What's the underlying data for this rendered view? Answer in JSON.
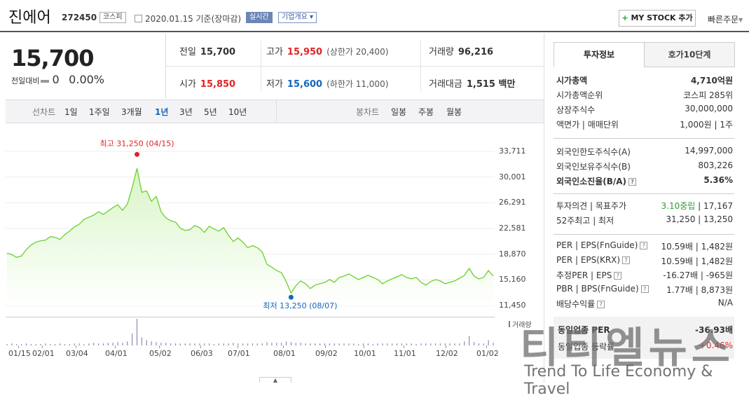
{
  "header": {
    "company_name": "진에어",
    "stock_code": "272450",
    "market_tag": "코스피",
    "date_text": "2020.01.15 기준(장마감)",
    "realtime_tag": "실시간",
    "company_overview_tag": "기업개요",
    "mystock_plus": "+",
    "mystock_label": "MY STOCK 추가",
    "quick_order": "빠른주문"
  },
  "price": {
    "current": "15,700",
    "diff_label": "전일대비",
    "diff_value": "0",
    "diff_pct": "0.00%"
  },
  "summary": {
    "prev_label": "전일",
    "prev_value": "15,700",
    "high_label": "고가",
    "high_value": "15,950",
    "upper_limit": "(상한가 20,400)",
    "volume_label": "거래량",
    "volume_value": "96,216",
    "open_label": "시가",
    "open_value": "15,850",
    "low_label": "저가",
    "low_value": "15,600",
    "lower_limit": "(하한가 11,000)",
    "amount_label": "거래대금",
    "amount_value": "1,515 백만"
  },
  "periods": {
    "line_label": "선차트",
    "line_items": [
      "1일",
      "1주일",
      "3개월",
      "1년",
      "3년",
      "5년",
      "10년"
    ],
    "active_index": 3,
    "candle_label": "봉차트",
    "candle_items": [
      "일봉",
      "주봉",
      "월봉"
    ]
  },
  "chart_data": {
    "type": "area",
    "y_ticks": [
      "33,711",
      "30,001",
      "26,291",
      "22,581",
      "18,870",
      "15,160",
      "11,450"
    ],
    "ylim": [
      11450,
      33711
    ],
    "x_ticks": [
      "01/15",
      "02/01",
      "03/04",
      "04/01",
      "05/02",
      "06/03",
      "07/01",
      "08/01",
      "09/02",
      "10/01",
      "11/01",
      "12/02",
      "01/02"
    ],
    "high_annotation": "최고 31,250 (04/15)",
    "low_annotation": "최저 13,250 (08/07)",
    "high_value": 31250,
    "low_value": 13250,
    "volume_label": "거래량",
    "series": [
      {
        "values": [
          19000,
          18800,
          18400,
          18600,
          19500,
          20200,
          20600,
          20800,
          20900,
          21400,
          21300,
          21000,
          21700,
          22200,
          22800,
          23200,
          23900,
          24200,
          24500,
          25000,
          24600,
          25100,
          25600,
          26000,
          25200,
          26100,
          28500,
          31250,
          27800,
          28000,
          26500,
          27200,
          25000,
          24100,
          23700,
          23500,
          22600,
          22300,
          22400,
          23000,
          22700,
          22000,
          22900,
          22500,
          22200,
          22700,
          21600,
          20700,
          21200,
          20600,
          19800,
          20100,
          19800,
          19200,
          17400,
          17000,
          16500,
          16200,
          14900,
          13250,
          14300,
          15000,
          14600,
          13900,
          14400,
          14600,
          14800,
          15200,
          14800,
          15500,
          15700,
          16000,
          15600,
          15200,
          15500,
          15800,
          15500,
          15200,
          14600,
          15000,
          15300,
          15600,
          15900,
          15500,
          15300,
          15500,
          14800,
          14400,
          14900,
          15200,
          15000,
          14600,
          14800,
          15000,
          15400,
          15800,
          16800,
          15700,
          15300,
          15500,
          16500,
          15700
        ]
      }
    ],
    "volume_values": [
      2,
      3,
      2,
      2,
      3,
      2,
      2,
      2,
      3,
      2,
      2,
      3,
      2,
      2,
      3,
      3,
      2,
      3,
      4,
      3,
      3,
      4,
      4,
      5,
      4,
      6,
      18,
      40,
      12,
      8,
      6,
      5,
      4,
      4,
      3,
      3,
      3,
      3,
      3,
      3,
      3,
      3,
      3,
      2,
      3,
      3,
      3,
      4,
      3,
      3,
      3,
      3,
      3,
      3,
      5,
      4,
      4,
      4,
      6,
      5,
      4,
      4,
      3,
      3,
      3,
      3,
      3,
      3,
      3,
      3,
      3,
      3,
      3,
      2,
      3,
      3,
      2,
      3,
      3,
      3,
      3,
      3,
      3,
      3,
      3,
      2,
      3,
      3,
      3,
      3,
      3,
      3,
      3,
      3,
      3,
      6,
      14,
      5,
      3,
      3,
      8,
      4
    ]
  },
  "right_panel": {
    "tab_active": "투자정보",
    "tab_inactive": "호가10단계",
    "rows1": [
      {
        "label": "시가총액",
        "value": "4,710억원",
        "bold": true
      },
      {
        "label": "시가총액순위",
        "value": "코스피 285위"
      },
      {
        "label": "상장주식수",
        "value": "30,000,000"
      },
      {
        "label": "액면가 | 매매단위",
        "value": "1,000원 | 1주"
      }
    ],
    "rows2": [
      {
        "label": "외국인한도주식수(A)",
        "value": "14,997,000"
      },
      {
        "label": "외국인보유주식수(B)",
        "value": "803,226"
      },
      {
        "label": "외국인소진율(B/A)",
        "value": "5.36%",
        "bold": true
      }
    ],
    "rows3": [
      {
        "label": "투자의견 | 목표주가",
        "value_green": "3.10중립",
        "value": "17,167"
      },
      {
        "label": "52주최고 | 최저",
        "value": "31,250 | 13,250"
      }
    ],
    "rows4": [
      {
        "label": "PER | EPS(FnGuide)",
        "value": "10.59배 | 1,482원"
      },
      {
        "label": "PER | EPS(KRX)",
        "value": "10.59배 | 1,482원"
      },
      {
        "label": "추정PER | EPS",
        "value": "-16.27배 | -965원"
      },
      {
        "label": "PBR | BPS(FnGuide)",
        "value": "1.77배 | 8,873원"
      },
      {
        "label": "배당수익률",
        "value": "N/A"
      }
    ],
    "industry_per_label": "동일업종 PER",
    "industry_per_value": "-36.93배",
    "industry_rate_label": "동일업종 등락률",
    "industry_rate_value": "+0.46%"
  },
  "watermark": {
    "main": "티티엘뉴스",
    "sub": "Trend To Life Economy & Travel"
  },
  "colors": {
    "line": "#6ccf2f",
    "area_top": "#d8f5c6",
    "area_bottom": "#ffffff",
    "up": "#e02424",
    "down": "#1565c0",
    "high_dot": "#e02424",
    "low_dot": "#1565c0"
  }
}
